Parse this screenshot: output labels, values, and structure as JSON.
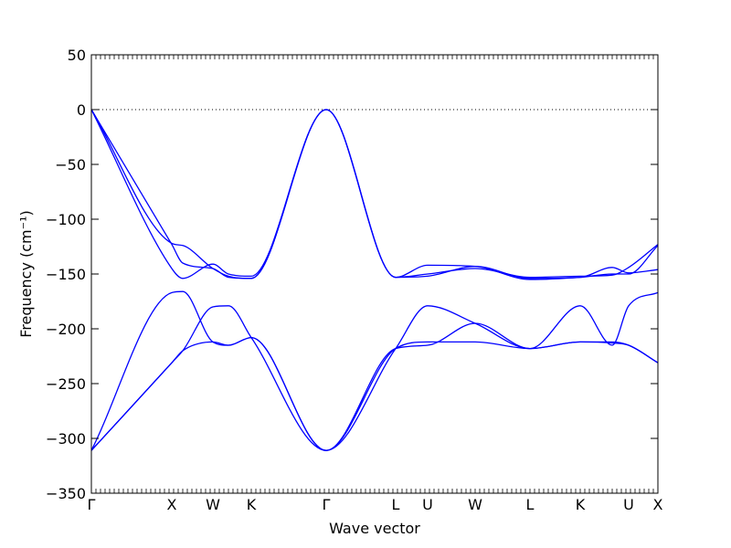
{
  "chart_data": {
    "type": "line",
    "xlabel": "Wave vector",
    "ylabel": "Frequency (cm⁻¹)",
    "ylim": [
      -350,
      50
    ],
    "yticks": [
      50,
      0,
      -50,
      -100,
      -150,
      -200,
      -250,
      -300,
      -350
    ],
    "ytick_labels": [
      "50",
      "0",
      "−50",
      "−100",
      "−150",
      "−200",
      "−250",
      "−300",
      "−350"
    ],
    "grid": false,
    "reference_line": 0,
    "high_symmetry_points": [
      "Γ",
      "X",
      "W",
      "K",
      "Γ",
      "L",
      "U",
      "W",
      "L",
      "K",
      "U",
      "X"
    ],
    "color": "#0000ff",
    "series": [
      {
        "y": [
          0,
          -122,
          -124,
          -145,
          -152,
          -154,
          0,
          -153,
          -150,
          -145,
          -153,
          -152,
          -151,
          -144,
          -123
        ]
      },
      {
        "y": [
          0,
          -123,
          -140,
          -145,
          -153,
          -154,
          0,
          -153,
          -142,
          -143,
          -155,
          -153,
          -150,
          -150,
          -124
        ]
      },
      {
        "y": [
          0,
          -145,
          -154,
          -141,
          -150,
          -152,
          0,
          -153,
          -152,
          -143,
          -154,
          -153,
          -144,
          -149,
          -146
        ]
      },
      {
        "y": [
          -311,
          -167,
          -166,
          -212,
          -215,
          -208,
          -311,
          -218,
          -179,
          -195,
          -218,
          -179,
          -215,
          -179,
          -167
        ]
      },
      {
        "y": [
          -311,
          -231,
          -220,
          -180,
          -179,
          -208,
          -311,
          -218,
          -212,
          -212,
          -218,
          -212,
          -212,
          -215,
          -231
        ]
      },
      {
        "y": [
          -311,
          -231,
          -220,
          -212,
          -215,
          -208,
          -311,
          -218,
          -215,
          -195,
          -218,
          -212,
          -213,
          -215,
          -231
        ]
      }
    ]
  }
}
